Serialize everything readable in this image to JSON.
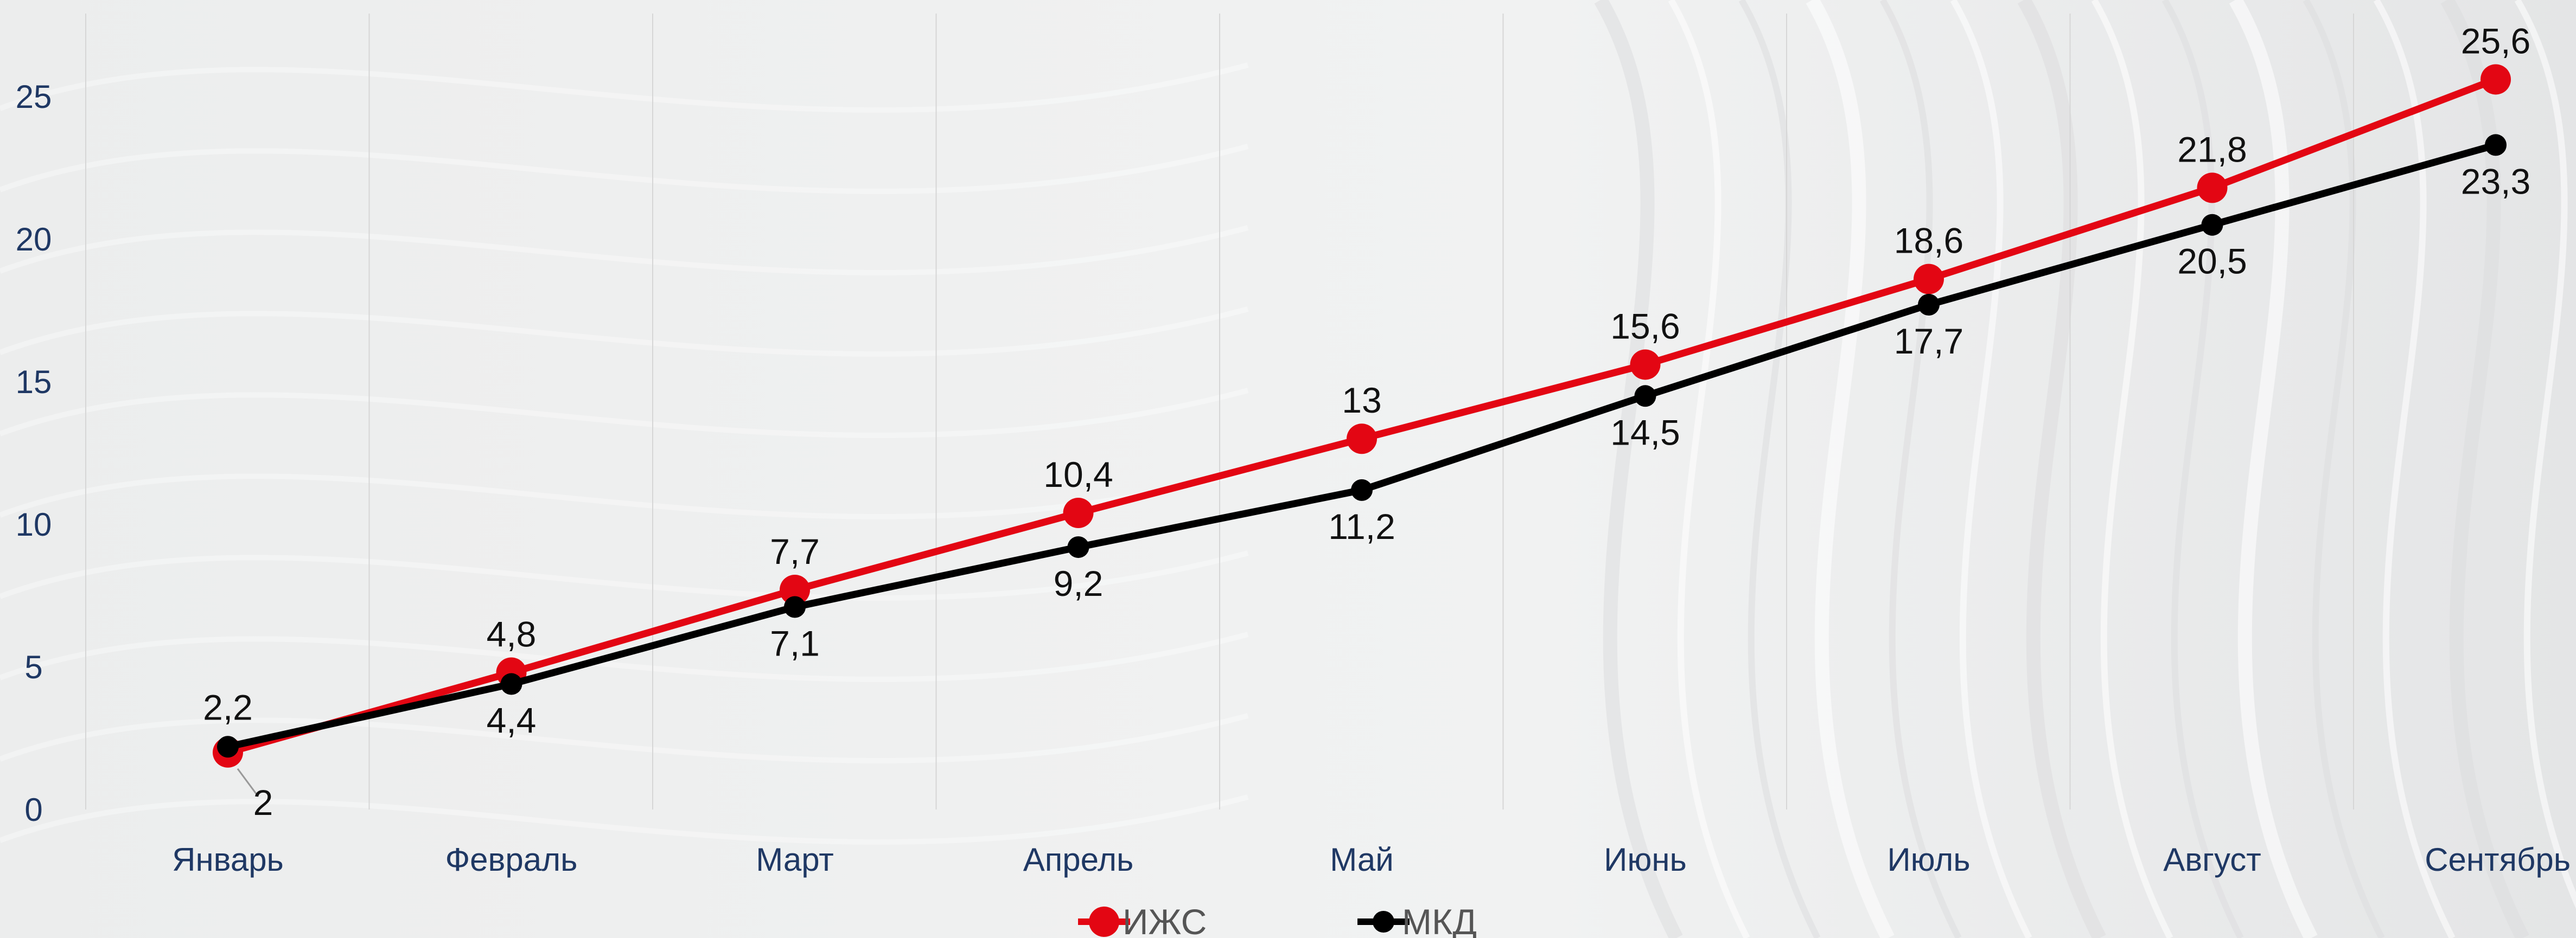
{
  "chart_data": {
    "type": "line",
    "categories": [
      "Январь",
      "Февраль",
      "Март",
      "Апрель",
      "Май",
      "Июнь",
      "Июль",
      "Август",
      "Сентябрь"
    ],
    "series": [
      {
        "name": "ИЖС",
        "values": [
          2,
          4.8,
          7.7,
          10.4,
          13,
          15.6,
          18.6,
          21.8,
          25.6
        ],
        "labels": [
          "2",
          "4,8",
          "7,7",
          "10,4",
          "13",
          "15,6",
          "18,6",
          "21,8",
          "25,6"
        ],
        "color": "#e30613"
      },
      {
        "name": "МКД",
        "values": [
          2.2,
          4.4,
          7.1,
          9.2,
          11.2,
          14.5,
          17.7,
          20.5,
          23.3
        ],
        "labels": [
          "2,2",
          "4,4",
          "7,1",
          "9,2",
          "11,2",
          "14,5",
          "17,7",
          "20,5",
          "23,3"
        ],
        "color": "#000000"
      }
    ],
    "y_ticks": [
      "0",
      "5",
      "10",
      "15",
      "20",
      "25"
    ],
    "ylim": [
      0,
      25
    ],
    "grid": "vertical",
    "legend": "bottom",
    "title": "",
    "xlabel": "",
    "ylabel": ""
  },
  "colors": {
    "background": "#eeeff0",
    "tick_text": "#1f3864",
    "grid": "#d6d6d6"
  }
}
